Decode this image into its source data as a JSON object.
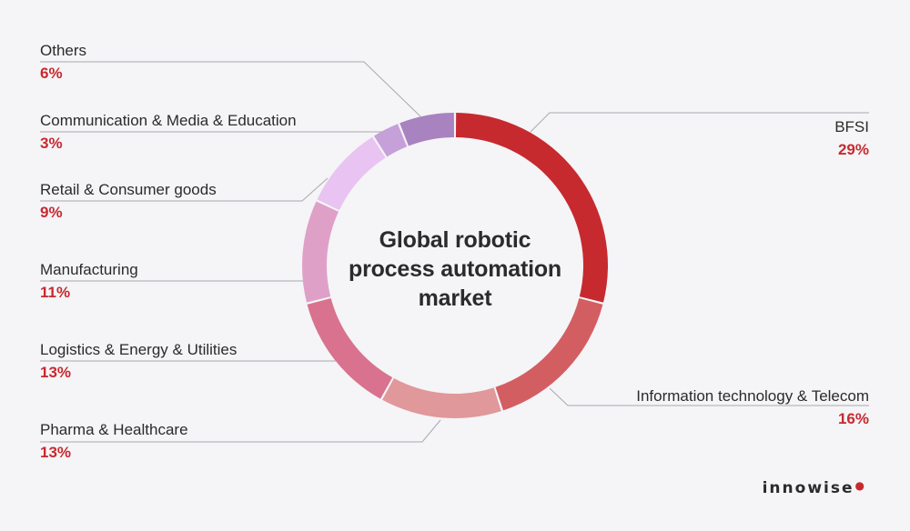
{
  "chart_data": {
    "type": "pie",
    "title_lines": [
      "Global robotic",
      "process automation",
      "market"
    ],
    "categories": [
      "BFSI",
      "Information technology & Telecom",
      "Pharma & Healthcare",
      "Logistics & Energy & Utilities",
      "Manufacturing",
      "Retail & Consumer goods",
      "Communication & Media & Education",
      "Others"
    ],
    "values": [
      29,
      16,
      13,
      13,
      11,
      9,
      3,
      6
    ],
    "value_labels": [
      "29%",
      "16%",
      "13%",
      "13%",
      "11%",
      "9%",
      "3%",
      "6%"
    ],
    "colors": [
      "#c62a2f",
      "#d35e62",
      "#e0989b",
      "#d8728f",
      "#dfa0c8",
      "#e9c3f2",
      "#c6a0d8",
      "#a883c0"
    ],
    "style": "donut"
  },
  "brand": {
    "name": "innowise"
  }
}
